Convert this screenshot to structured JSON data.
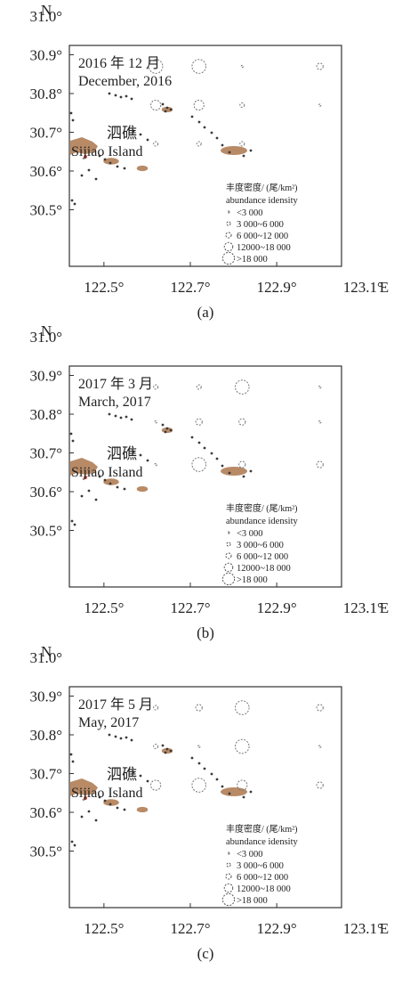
{
  "maps": [
    {
      "panel_label": "(a)",
      "title_cn": "2016 年 12 月",
      "title_en": "December, 2016",
      "stations": [
        {
          "lon": 122.62,
          "lat": 30.87,
          "cls": 4
        },
        {
          "lon": 122.72,
          "lat": 30.87,
          "cls": 4
        },
        {
          "lon": 122.82,
          "lat": 30.87,
          "cls": 0
        },
        {
          "lon": 123.0,
          "lat": 30.87,
          "cls": 2
        },
        {
          "lon": 122.62,
          "lat": 30.77,
          "cls": 3
        },
        {
          "lon": 122.72,
          "lat": 30.77,
          "cls": 3
        },
        {
          "lon": 122.82,
          "lat": 30.77,
          "cls": 1
        },
        {
          "lon": 123.0,
          "lat": 30.77,
          "cls": 0
        },
        {
          "lon": 122.62,
          "lat": 30.67,
          "cls": 1
        },
        {
          "lon": 122.72,
          "lat": 30.67,
          "cls": 1
        },
        {
          "lon": 122.82,
          "lat": 30.67,
          "cls": 1
        }
      ]
    },
    {
      "panel_label": "(b)",
      "title_cn": "2017 年 3 月",
      "title_en": "March, 2017",
      "stations": [
        {
          "lon": 122.62,
          "lat": 30.87,
          "cls": 1
        },
        {
          "lon": 122.72,
          "lat": 30.87,
          "cls": 1
        },
        {
          "lon": 122.82,
          "lat": 30.87,
          "cls": 4
        },
        {
          "lon": 123.0,
          "lat": 30.87,
          "cls": 0
        },
        {
          "lon": 122.62,
          "lat": 30.78,
          "cls": 0
        },
        {
          "lon": 122.72,
          "lat": 30.78,
          "cls": 2
        },
        {
          "lon": 122.82,
          "lat": 30.78,
          "cls": 2
        },
        {
          "lon": 123.0,
          "lat": 30.78,
          "cls": 0
        },
        {
          "lon": 122.62,
          "lat": 30.67,
          "cls": 0
        },
        {
          "lon": 122.72,
          "lat": 30.67,
          "cls": 4
        },
        {
          "lon": 122.82,
          "lat": 30.67,
          "cls": 2
        },
        {
          "lon": 123.0,
          "lat": 30.67,
          "cls": 2
        }
      ]
    },
    {
      "panel_label": "(c)",
      "title_cn": "2017 年 5 月",
      "title_en": "May, 2017",
      "stations": [
        {
          "lon": 122.62,
          "lat": 30.87,
          "cls": 1
        },
        {
          "lon": 122.72,
          "lat": 30.87,
          "cls": 2
        },
        {
          "lon": 122.82,
          "lat": 30.87,
          "cls": 4
        },
        {
          "lon": 123.0,
          "lat": 30.87,
          "cls": 2
        },
        {
          "lon": 122.62,
          "lat": 30.77,
          "cls": 1
        },
        {
          "lon": 122.72,
          "lat": 30.77,
          "cls": 0
        },
        {
          "lon": 122.82,
          "lat": 30.77,
          "cls": 4
        },
        {
          "lon": 123.0,
          "lat": 30.77,
          "cls": 0
        },
        {
          "lon": 122.62,
          "lat": 30.67,
          "cls": 3
        },
        {
          "lon": 122.72,
          "lat": 30.67,
          "cls": 4
        },
        {
          "lon": 122.82,
          "lat": 30.67,
          "cls": 3
        },
        {
          "lon": 123.0,
          "lat": 30.67,
          "cls": 2
        }
      ]
    }
  ],
  "axis": {
    "north_label": "N",
    "east_label": "E",
    "lat_ticks": [
      "31.0°",
      "30.9°",
      "30.8°",
      "30.7°",
      "30.6°",
      "30.5°"
    ],
    "lon_ticks": [
      "122.5°",
      "122.7°",
      "122.9°",
      "123.1°"
    ],
    "lat_values": [
      31.0,
      30.9,
      30.8,
      30.7,
      30.6,
      30.5
    ],
    "lon_values": [
      122.5,
      122.7,
      122.9,
      123.1
    ],
    "lat_range": [
      30.45,
      31.0
    ],
    "lon_range": [
      122.42,
      123.05
    ]
  },
  "place": {
    "name_cn": "泗礁",
    "name_en": "Sijiao Island"
  },
  "legend": {
    "title_cn": "丰度密度/ (尾/km²)",
    "title_en": "abundance idensity",
    "classes": [
      "<3 000",
      "3 000~6 000",
      "6 000~12 000",
      "12000~18 000",
      ">18 000"
    ]
  },
  "colors": {
    "land": "#b88a66",
    "islet": "#3a3a3a",
    "circle": "#777777"
  }
}
